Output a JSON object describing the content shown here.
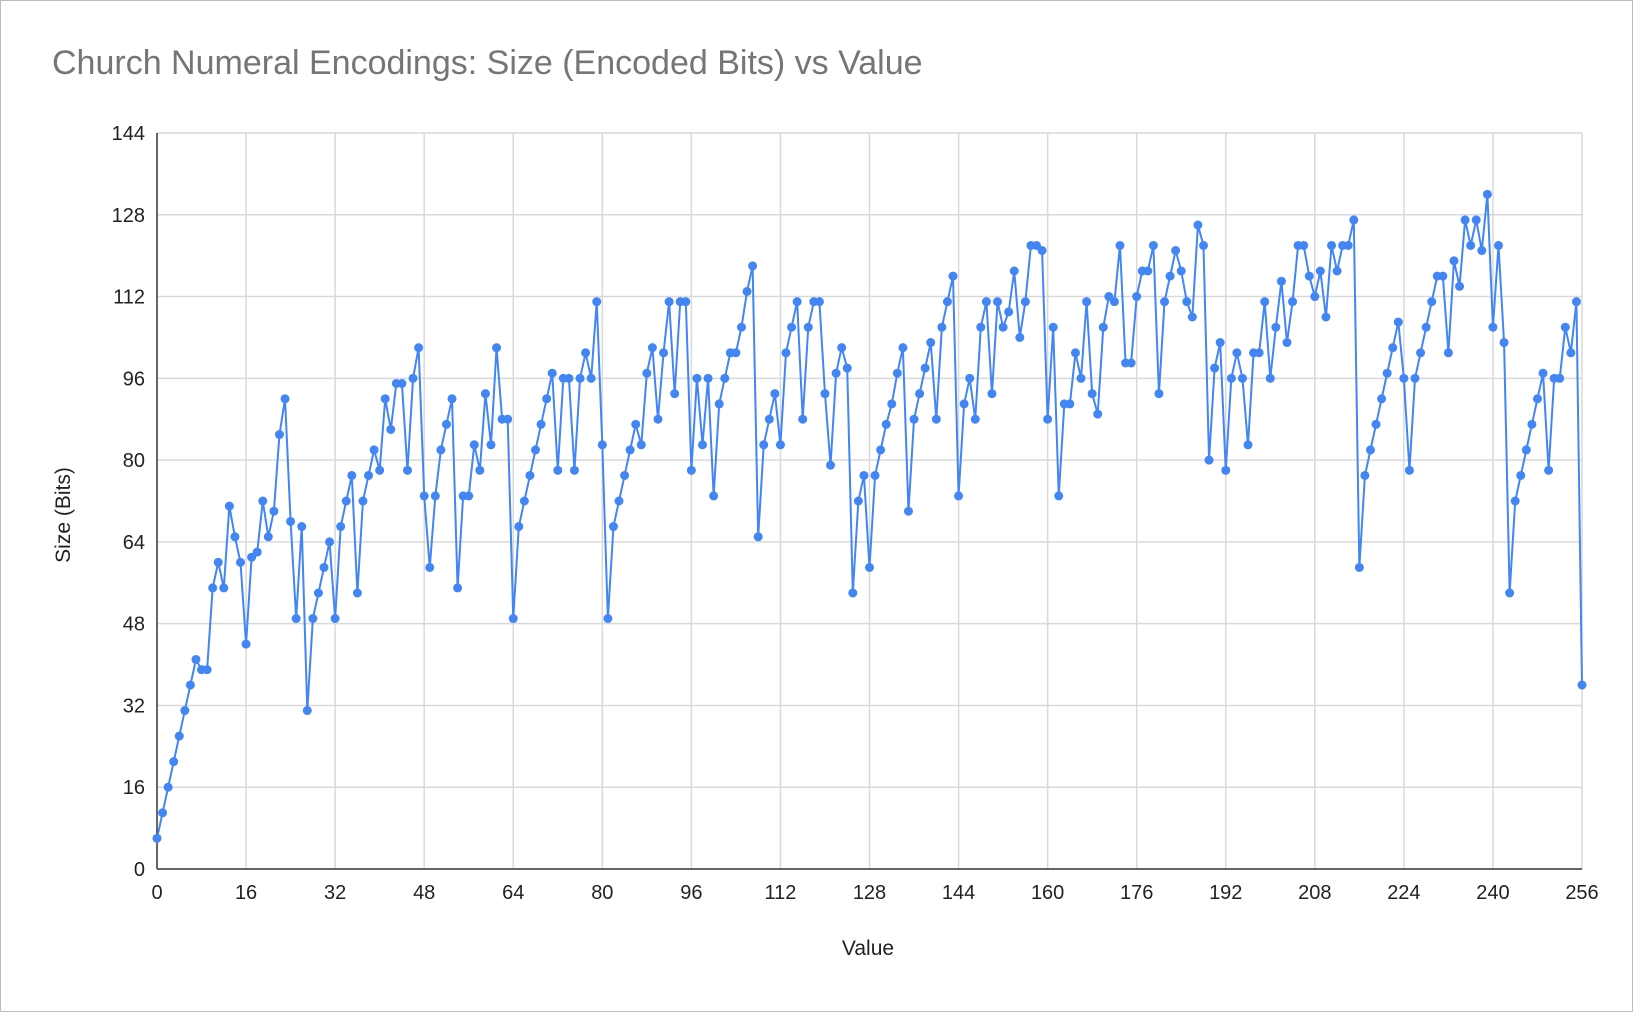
{
  "chart_data": {
    "type": "line",
    "title": "Church Numeral Encodings: Size (Encoded Bits) vs Value",
    "xlabel": "Value",
    "ylabel": "Size (Bits)",
    "xlim": [
      0,
      256
    ],
    "ylim": [
      0,
      144
    ],
    "x_ticks": [
      "0",
      "16",
      "32",
      "48",
      "64",
      "80",
      "96",
      "112",
      "128",
      "144",
      "160",
      "176",
      "192",
      "208",
      "224",
      "240",
      "256"
    ],
    "y_ticks": [
      "0",
      "16",
      "32",
      "48",
      "64",
      "80",
      "96",
      "112",
      "128",
      "144"
    ],
    "grid": true,
    "legend": "none",
    "series_color": "#4285f4",
    "series": [
      {
        "values": [
          6,
          11,
          16,
          21,
          26,
          31,
          36,
          41,
          39,
          39,
          55,
          60,
          55,
          71,
          65,
          60,
          44,
          61,
          62,
          72,
          65,
          70,
          85,
          92,
          68,
          49,
          67,
          31,
          49,
          54,
          59,
          64,
          49,
          67,
          72,
          77,
          54,
          72,
          77,
          82,
          78,
          92,
          86,
          95,
          95,
          78,
          96,
          102,
          73,
          59,
          73,
          82,
          87,
          92,
          55,
          73,
          73,
          83,
          78,
          93,
          83,
          102,
          88,
          88,
          49,
          67,
          72,
          77,
          82,
          87,
          92,
          97,
          78,
          96,
          96,
          78,
          96,
          101,
          96,
          111,
          83,
          49,
          67,
          72,
          77,
          82,
          87,
          83,
          97,
          102,
          88,
          101,
          111,
          93,
          111,
          111,
          78,
          96,
          83,
          96,
          73,
          91,
          96,
          101,
          101,
          106,
          113,
          118,
          65,
          83,
          88,
          93,
          83,
          101,
          106,
          111,
          88,
          106,
          111,
          111,
          93,
          79,
          97,
          102,
          98,
          54,
          72,
          77,
          59,
          77,
          82,
          87,
          91,
          97,
          102,
          70,
          88,
          93,
          98,
          103,
          88,
          106,
          111,
          116,
          73,
          91,
          96,
          88,
          106,
          111,
          93,
          111,
          106,
          109,
          117,
          104,
          111,
          122,
          122,
          121,
          88,
          106,
          73,
          91,
          91,
          101,
          96,
          111,
          93,
          89,
          106,
          112,
          111,
          122,
          99,
          99,
          112,
          117,
          117,
          122,
          93,
          111,
          116,
          121,
          117,
          111,
          108,
          126,
          122,
          80,
          98,
          103,
          78,
          96,
          101,
          96,
          83,
          101,
          101,
          111,
          96,
          106,
          115,
          103,
          111,
          122,
          122,
          116,
          112,
          117,
          108,
          122,
          117,
          122,
          122,
          127,
          59,
          77,
          82,
          87,
          92,
          97,
          102,
          107,
          96,
          78,
          96,
          101,
          106,
          111,
          116,
          116,
          101,
          119,
          114,
          127,
          122,
          127,
          121,
          132,
          106,
          122,
          103,
          54,
          72,
          77,
          82,
          87,
          92,
          97,
          78,
          96,
          96,
          106,
          101,
          111,
          36
        ]
      }
    ]
  }
}
